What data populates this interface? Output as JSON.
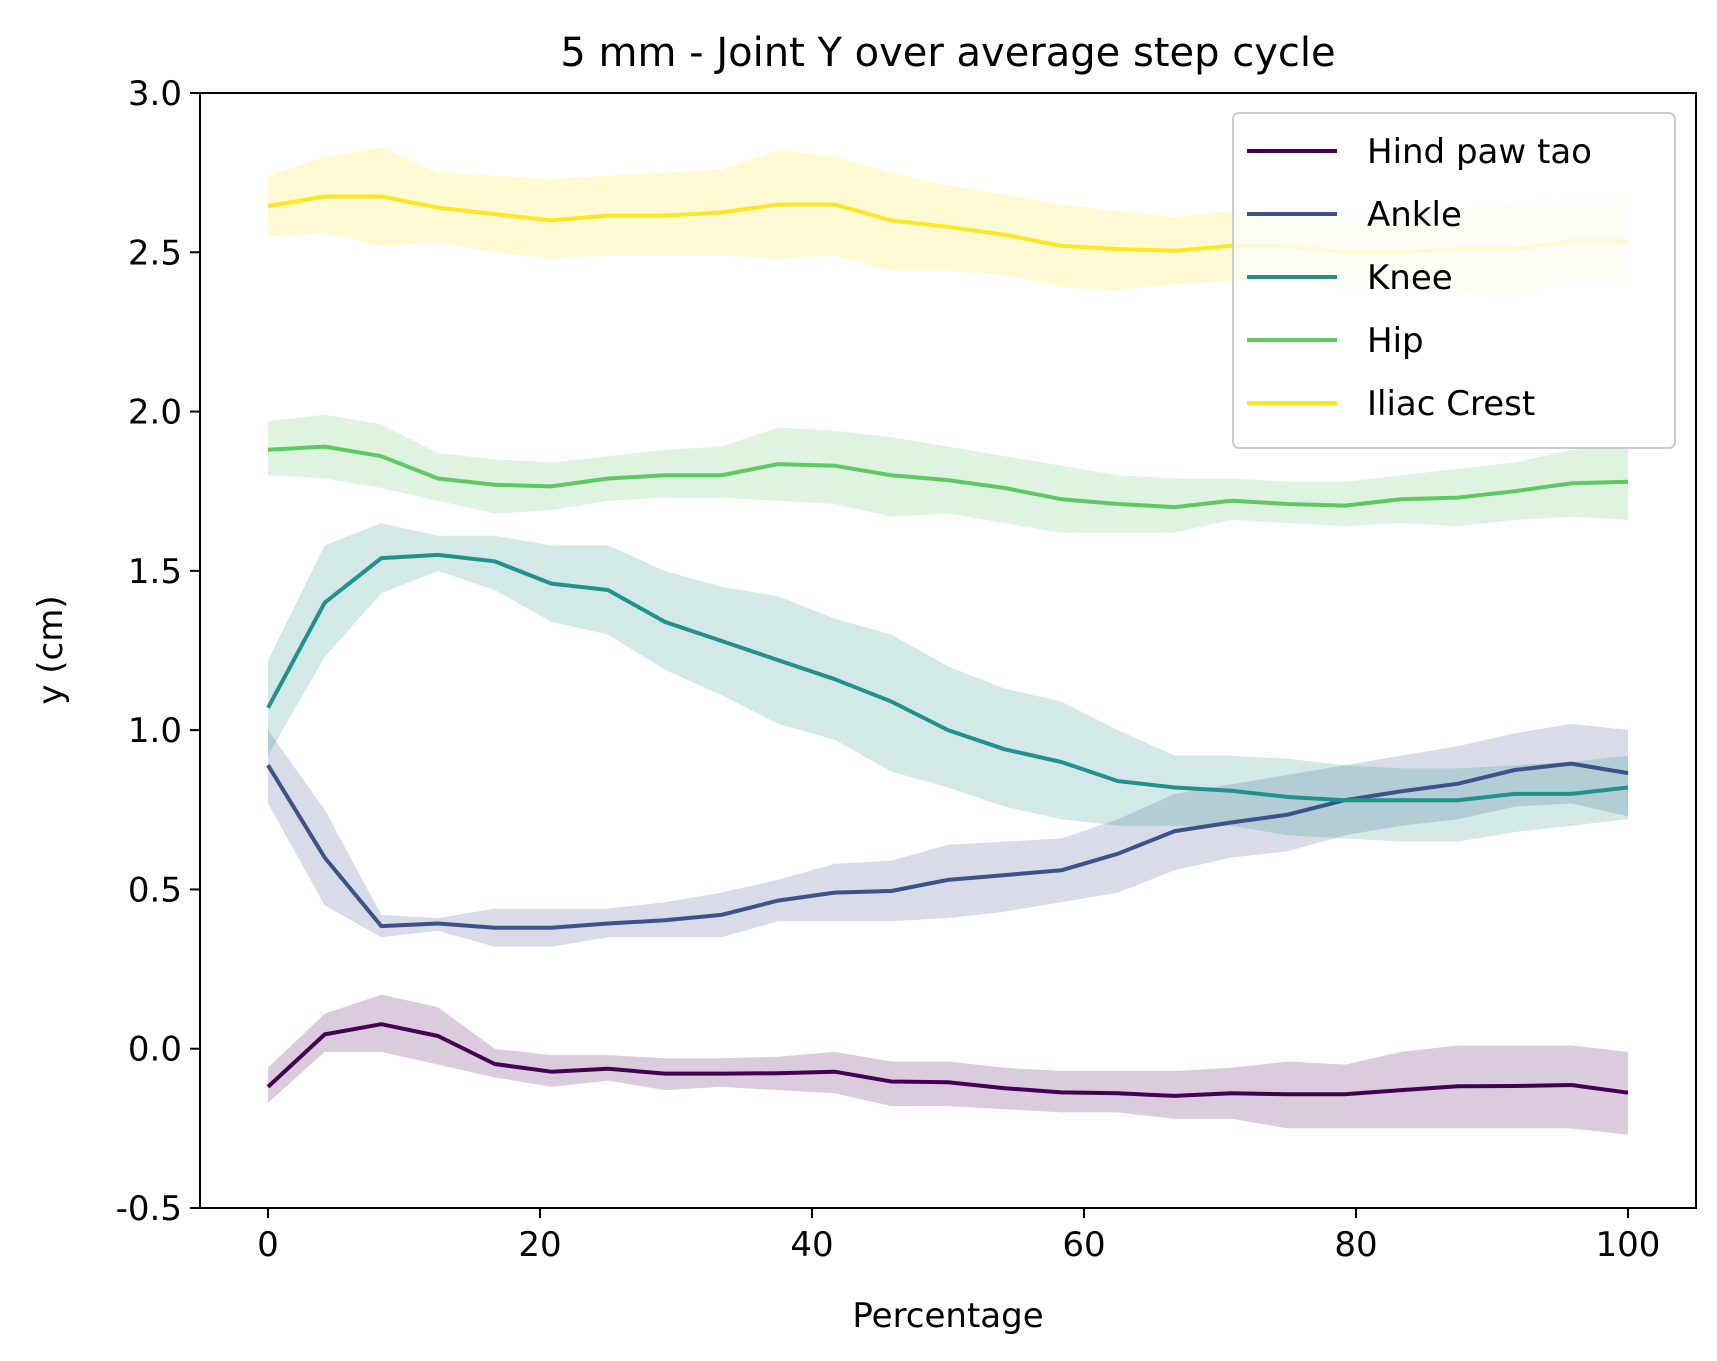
{
  "chart_data": {
    "type": "line",
    "title": "5 mm - Joint Y over average step cycle",
    "xlabel": "Percentage",
    "ylabel": "y (cm)",
    "xlim": [
      -5,
      105
    ],
    "ylim": [
      -0.5,
      3.0
    ],
    "xticks": [
      "0",
      "20",
      "40",
      "60",
      "80",
      "100"
    ],
    "yticks": [
      "-0.5",
      "0.0",
      "0.5",
      "1.0",
      "1.5",
      "2.0",
      "2.5",
      "3.0"
    ],
    "grid": false,
    "legend_position": "top-right",
    "x": [
      0,
      4.17,
      8.33,
      12.5,
      16.67,
      20.83,
      25,
      29.17,
      33.33,
      37.5,
      41.67,
      45.83,
      50,
      54.17,
      58.33,
      62.5,
      66.67,
      70.83,
      75,
      79.17,
      83.33,
      87.5,
      91.67,
      95.83,
      100
    ],
    "series": [
      {
        "name": "Hind paw tao",
        "color": "#440154",
        "values": [
          -0.12,
          0.045,
          0.077,
          0.04,
          -0.048,
          -0.072,
          -0.063,
          -0.078,
          -0.078,
          -0.077,
          -0.072,
          -0.103,
          -0.105,
          -0.124,
          -0.137,
          -0.14,
          -0.148,
          -0.14,
          -0.143,
          -0.143,
          -0.13,
          -0.118,
          -0.117,
          -0.114,
          -0.138
        ],
        "upper": [
          -0.06,
          0.11,
          0.17,
          0.13,
          0.0,
          -0.02,
          -0.02,
          -0.03,
          -0.03,
          -0.025,
          -0.01,
          -0.04,
          -0.04,
          -0.06,
          -0.07,
          -0.07,
          -0.07,
          -0.06,
          -0.04,
          -0.05,
          -0.01,
          0.01,
          0.01,
          0.01,
          -0.01
        ],
        "lower": [
          -0.17,
          -0.01,
          -0.01,
          -0.05,
          -0.09,
          -0.12,
          -0.1,
          -0.13,
          -0.12,
          -0.13,
          -0.14,
          -0.18,
          -0.18,
          -0.19,
          -0.2,
          -0.2,
          -0.22,
          -0.22,
          -0.25,
          -0.25,
          -0.25,
          -0.25,
          -0.25,
          -0.25,
          -0.27
        ]
      },
      {
        "name": "Ankle",
        "color": "#3b528b",
        "values": [
          0.89,
          0.6,
          0.385,
          0.393,
          0.38,
          0.38,
          0.393,
          0.403,
          0.42,
          0.465,
          0.49,
          0.495,
          0.53,
          0.545,
          0.56,
          0.612,
          0.683,
          0.71,
          0.735,
          0.78,
          0.808,
          0.832,
          0.875,
          0.895,
          0.865
        ],
        "upper": [
          1.0,
          0.75,
          0.42,
          0.41,
          0.44,
          0.44,
          0.44,
          0.46,
          0.49,
          0.53,
          0.58,
          0.59,
          0.64,
          0.65,
          0.66,
          0.72,
          0.8,
          0.83,
          0.86,
          0.89,
          0.92,
          0.95,
          0.99,
          1.02,
          1.0
        ],
        "lower": [
          0.77,
          0.45,
          0.35,
          0.37,
          0.32,
          0.32,
          0.35,
          0.35,
          0.35,
          0.4,
          0.4,
          0.4,
          0.41,
          0.43,
          0.46,
          0.49,
          0.56,
          0.6,
          0.62,
          0.67,
          0.7,
          0.72,
          0.76,
          0.77,
          0.73
        ]
      },
      {
        "name": "Knee",
        "color": "#21918c",
        "values": [
          1.07,
          1.4,
          1.54,
          1.55,
          1.53,
          1.46,
          1.44,
          1.34,
          1.28,
          1.22,
          1.16,
          1.09,
          1.0,
          0.94,
          0.9,
          0.84,
          0.82,
          0.81,
          0.79,
          0.78,
          0.78,
          0.78,
          0.8,
          0.8,
          0.82
        ],
        "upper": [
          1.22,
          1.58,
          1.65,
          1.61,
          1.61,
          1.58,
          1.58,
          1.5,
          1.45,
          1.42,
          1.35,
          1.3,
          1.2,
          1.13,
          1.09,
          1.0,
          0.92,
          0.92,
          0.91,
          0.89,
          0.88,
          0.88,
          0.89,
          0.9,
          0.92
        ],
        "lower": [
          0.92,
          1.23,
          1.43,
          1.5,
          1.44,
          1.34,
          1.3,
          1.19,
          1.11,
          1.02,
          0.97,
          0.87,
          0.82,
          0.76,
          0.72,
          0.7,
          0.7,
          0.7,
          0.67,
          0.66,
          0.65,
          0.65,
          0.68,
          0.7,
          0.72
        ]
      },
      {
        "name": "Hip",
        "color": "#5ec962",
        "values": [
          1.88,
          1.89,
          1.86,
          1.79,
          1.77,
          1.765,
          1.79,
          1.8,
          1.8,
          1.835,
          1.83,
          1.8,
          1.785,
          1.76,
          1.725,
          1.71,
          1.7,
          1.72,
          1.71,
          1.705,
          1.725,
          1.73,
          1.75,
          1.775,
          1.78
        ],
        "upper": [
          1.97,
          1.99,
          1.96,
          1.87,
          1.85,
          1.84,
          1.86,
          1.88,
          1.89,
          1.95,
          1.94,
          1.92,
          1.89,
          1.86,
          1.83,
          1.8,
          1.79,
          1.79,
          1.78,
          1.78,
          1.8,
          1.82,
          1.84,
          1.88,
          1.89
        ],
        "lower": [
          1.8,
          1.79,
          1.76,
          1.72,
          1.68,
          1.69,
          1.72,
          1.73,
          1.73,
          1.72,
          1.71,
          1.67,
          1.68,
          1.65,
          1.62,
          1.62,
          1.62,
          1.66,
          1.65,
          1.64,
          1.65,
          1.64,
          1.66,
          1.67,
          1.66
        ]
      },
      {
        "name": "Iliac Crest",
        "color": "#fde725",
        "values": [
          2.645,
          2.675,
          2.675,
          2.64,
          2.62,
          2.6,
          2.615,
          2.615,
          2.625,
          2.65,
          2.65,
          2.6,
          2.58,
          2.555,
          2.52,
          2.51,
          2.505,
          2.52,
          2.52,
          2.5,
          2.5,
          2.51,
          2.51,
          2.535,
          2.535
        ],
        "upper": [
          2.74,
          2.8,
          2.83,
          2.75,
          2.74,
          2.73,
          2.74,
          2.75,
          2.76,
          2.82,
          2.8,
          2.75,
          2.71,
          2.68,
          2.65,
          2.63,
          2.61,
          2.63,
          2.63,
          2.62,
          2.62,
          2.64,
          2.65,
          2.67,
          2.67
        ],
        "lower": [
          2.55,
          2.56,
          2.52,
          2.53,
          2.5,
          2.48,
          2.49,
          2.49,
          2.49,
          2.48,
          2.49,
          2.44,
          2.44,
          2.43,
          2.39,
          2.38,
          2.4,
          2.41,
          2.41,
          2.38,
          2.38,
          2.38,
          2.37,
          2.4,
          2.4
        ]
      }
    ]
  }
}
